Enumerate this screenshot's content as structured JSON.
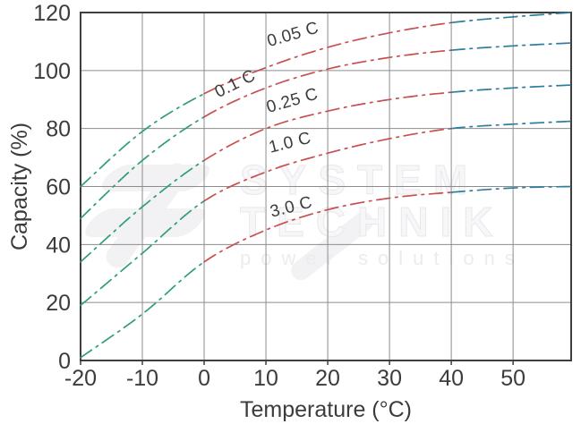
{
  "figure": {
    "watermark": {
      "line1": "SYSTEM",
      "line2": "TECHNIK",
      "line3": "power solutions"
    }
  },
  "chart_data": {
    "type": "line",
    "title": "",
    "xlabel": "Temperature (°C)",
    "ylabel": "Capacity (%)",
    "xlim": [
      -20,
      59.4
    ],
    "ylim": [
      0,
      120
    ],
    "x_ticks": [
      -20,
      -10,
      0,
      10,
      20,
      30,
      40,
      50
    ],
    "x_tick_labels": [
      "-20",
      "-10",
      "0",
      "10",
      "20",
      "30",
      "40",
      "50"
    ],
    "y_ticks": [
      0,
      20,
      40,
      60,
      80,
      100,
      120
    ],
    "y_tick_labels": [
      "0",
      "20",
      "40",
      "60",
      "80",
      "100",
      "120"
    ],
    "grid": true,
    "line_style": "dash-dot",
    "x": [
      -20,
      -10,
      0,
      10,
      20,
      30,
      40,
      50,
      59.4
    ],
    "series": [
      {
        "name": "0.05 C",
        "values": [
          60,
          79,
          92,
          101,
          108,
          113,
          116.5,
          118.5,
          120
        ],
        "label": {
          "text": "0.05 C",
          "t": 14.6,
          "cap": 110.7,
          "rot": -16
        }
      },
      {
        "name": "0.1 C",
        "values": [
          49,
          69,
          84,
          94,
          100.5,
          104.5,
          107,
          108.5,
          109.5
        ],
        "label": {
          "text": "0.1 C",
          "t": 5.4,
          "cap": 93.8,
          "rot": -26
        }
      },
      {
        "name": "0.25 C",
        "values": [
          34,
          53,
          69,
          80,
          86,
          90,
          92.5,
          94,
          95
        ],
        "label": {
          "text": "0.25 C",
          "t": 14.5,
          "cap": 87.9,
          "rot": -16
        }
      },
      {
        "name": "1.0 C",
        "values": [
          19,
          37,
          55,
          65,
          71.5,
          76.5,
          80,
          81.5,
          82.5
        ],
        "label": {
          "text": "1.0 C",
          "t": 14.1,
          "cap": 73.4,
          "rot": -14
        }
      },
      {
        "name": "3.0 C",
        "values": [
          1,
          16,
          34,
          45,
          52,
          56,
          58,
          59.5,
          60
        ],
        "label": {
          "text": "3.0 C",
          "t": 14.3,
          "cap": 51.2,
          "rot": -14
        }
      }
    ],
    "color_zones": [
      {
        "range": [
          -20,
          0
        ],
        "color": "#2f9e77",
        "meaning": "cold-temperature-segment"
      },
      {
        "range": [
          0,
          40
        ],
        "color": "#c84f4f",
        "meaning": "normal-temperature-segment"
      },
      {
        "range": [
          40,
          59.4
        ],
        "color": "#2f7e9d",
        "meaning": "high-temperature-segment"
      }
    ],
    "colors": {
      "grid": "#8c8c8c",
      "border": "#3e3e3e",
      "text": "#3c3c3c"
    },
    "legend_position": "none"
  }
}
